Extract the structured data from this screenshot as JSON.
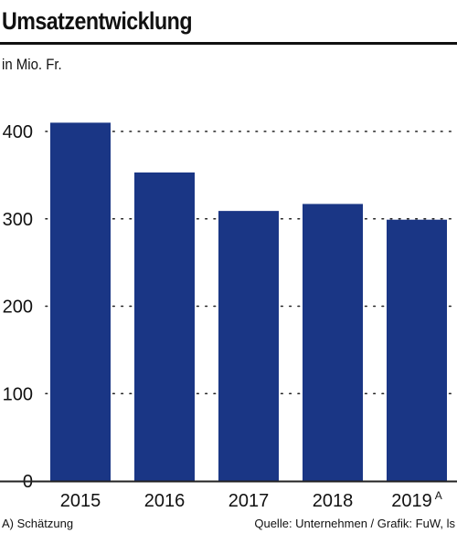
{
  "header": {
    "title": "Umsatzentwicklung",
    "unit": "in Mio. Fr."
  },
  "footer": {
    "footnote": "A) Schätzung",
    "source": "Quelle: Unternehmen / Grafik: FuW, ls"
  },
  "colors": {
    "bar": "#1a3685",
    "grid": "#222222",
    "text": "#111111"
  },
  "chart_data": {
    "type": "bar",
    "title": "Umsatzentwicklung",
    "ylabel": "in Mio. Fr.",
    "xlabel": "",
    "categories": [
      "2015",
      "2016",
      "2017",
      "2018",
      "2019"
    ],
    "category_superscripts": [
      "",
      "",
      "",
      "",
      "A"
    ],
    "values": [
      410,
      353,
      309,
      317,
      299
    ],
    "ylim": [
      0,
      400
    ],
    "yticks": [
      0,
      100,
      200,
      300,
      400
    ],
    "grid": true,
    "grid_style": "dotted",
    "legend": "none"
  }
}
